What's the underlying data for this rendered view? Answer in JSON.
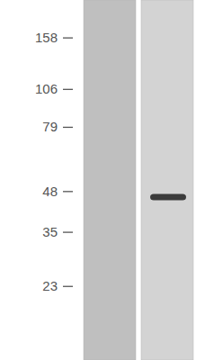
{
  "chart_data": {
    "type": "blot",
    "log": "y",
    "ylim": [
      13,
      212
    ],
    "yticks": [
      158,
      106,
      79,
      48,
      35,
      23
    ],
    "categories": [
      null,
      null
    ],
    "series": [
      {
        "color": "#2a2a2a",
        "values": [
          null,
          46
        ]
      }
    ],
    "tick_labels": "y"
  }
}
